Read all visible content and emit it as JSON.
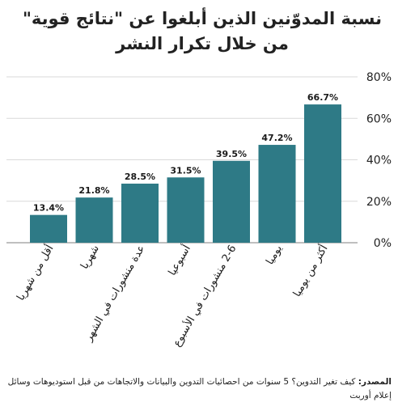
{
  "chart_data": {
    "type": "bar",
    "title": "نسبة المدوّنين الذين أبلغوا عن \"نتائج قوية\" من خلال تكرار النشر",
    "categories": [
      "أقل من شهريا",
      "شهريا",
      "عدة منشورات في الشهر",
      "أسبوعيا",
      "2-6 منشورات في الأسبوع",
      "يوميا",
      "أكثر من يوميا"
    ],
    "values": [
      13.4,
      21.8,
      28.5,
      31.5,
      39.5,
      47.2,
      66.7
    ],
    "value_labels": [
      "13.4%",
      "21.8%",
      "28.5%",
      "31.5%",
      "39.5%",
      "47.2%",
      "66.7%"
    ],
    "ylim": [
      0,
      80
    ],
    "yticks": [
      0,
      20,
      40,
      60,
      80
    ],
    "ytick_labels": [
      "0%",
      "20%",
      "40%",
      "60%",
      "80%"
    ],
    "y_axis_side": "right",
    "grid": true,
    "bar_color": "#2e7a86"
  },
  "source": {
    "label": "المصدر:",
    "text": "كيف تغير التدوين؟ 5 سنوات من احصائيات التدوين والبيانات والاتجاهات من قبل استوديوهات وسائل إعلام أوربت"
  }
}
